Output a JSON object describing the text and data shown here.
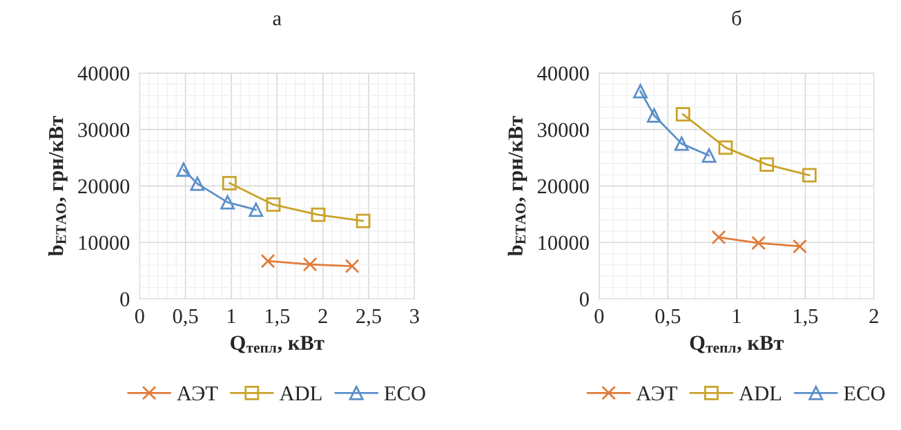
{
  "chart_data": [
    {
      "type": "line",
      "title": "а",
      "xlabel": "Q$_{тепл}$, кВт",
      "ylabel": "b$_{ЕТАО}$, грн/кВт",
      "xlim": [
        0,
        3
      ],
      "xticks": [
        0,
        {
          "value": 0.5,
          "label": "0,5"
        },
        1,
        {
          "value": 1.5,
          "label": "1,5"
        },
        2,
        {
          "value": 2.5,
          "label": "2,5"
        },
        3
      ],
      "ylim": [
        0,
        40000
      ],
      "yticks": [
        0,
        10000,
        20000,
        30000,
        40000
      ],
      "grid": true,
      "legend": "bottom",
      "series": [
        {
          "name": "АЭТ",
          "color": "#e07b39",
          "marker": "cross",
          "x": [
            1.4,
            1.86,
            2.32
          ],
          "values": [
            6700,
            6100,
            5800
          ]
        },
        {
          "name": "ADL",
          "color": "#c9a227",
          "marker": "square",
          "x": [
            0.98,
            1.46,
            1.95,
            2.44
          ],
          "values": [
            20500,
            16700,
            14900,
            13800
          ]
        },
        {
          "name": "ECO",
          "color": "#5b8fc9",
          "marker": "triangle",
          "x": [
            0.48,
            0.63,
            0.96,
            1.27
          ],
          "values": [
            22900,
            20400,
            17100,
            15800
          ]
        }
      ]
    },
    {
      "type": "line",
      "title": "б",
      "xlabel": "Q$_{тепл}$, кВт",
      "ylabel": "b$_{ЕТАО}$, грн/кВт",
      "xlim": [
        0,
        2
      ],
      "xticks": [
        0,
        {
          "value": 0.5,
          "label": "0,5"
        },
        1,
        {
          "value": 1.5,
          "label": "1,5"
        },
        2
      ],
      "ylim": [
        0,
        40000
      ],
      "yticks": [
        0,
        10000,
        20000,
        30000,
        40000
      ],
      "grid": true,
      "legend": "bottom",
      "series": [
        {
          "name": "АЭТ",
          "color": "#e07b39",
          "marker": "cross",
          "x": [
            0.87,
            1.16,
            1.46
          ],
          "values": [
            10900,
            9900,
            9300
          ]
        },
        {
          "name": "ADL",
          "color": "#c9a227",
          "marker": "square",
          "x": [
            0.61,
            0.92,
            1.22,
            1.53
          ],
          "values": [
            32700,
            26800,
            23800,
            21900
          ]
        },
        {
          "name": "ECO",
          "color": "#5b8fc9",
          "marker": "triangle",
          "x": [
            0.3,
            0.4,
            0.6,
            0.8
          ],
          "values": [
            36800,
            32500,
            27500,
            25400
          ]
        }
      ]
    }
  ]
}
